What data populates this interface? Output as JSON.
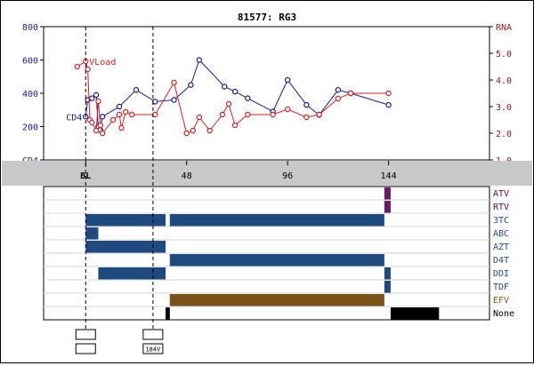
{
  "chart_data": [
    {
      "type": "line",
      "title": "81577: RG3",
      "x_axis": {
        "ticks": [
          0,
          48,
          96,
          144
        ],
        "tick_labels": [
          "BL",
          "48",
          "96",
          "144"
        ],
        "range": [
          -20,
          192
        ]
      },
      "left_axis": {
        "label": "CD4",
        "range": [
          0,
          800
        ],
        "ticks": [
          0,
          200,
          400,
          600,
          800
        ],
        "tick_labels": [
          "CD4",
          "200",
          "400",
          "600",
          "800"
        ],
        "color": "#1a1a8c"
      },
      "right_axis": {
        "label": "RNA",
        "range": [
          1.0,
          6.0
        ],
        "ticks": [
          1.0,
          2.0,
          3.0,
          4.0,
          5.0,
          6.0
        ],
        "tick_labels": [
          "1.0",
          "2.0",
          "3.0",
          "4.0",
          "5.0",
          "RNA"
        ],
        "color": "#8b1a1a"
      },
      "series": [
        {
          "name": "CD4",
          "color": "#1a1a8c",
          "axis": "left",
          "x": [
            0,
            1,
            3,
            5,
            6,
            7,
            8,
            16,
            24,
            33,
            42,
            50,
            54,
            66,
            71,
            77,
            89,
            96,
            105,
            111,
            120,
            126,
            144
          ],
          "y": [
            260,
            360,
            370,
            390,
            200,
            180,
            260,
            320,
            420,
            350,
            360,
            450,
            600,
            440,
            410,
            370,
            290,
            480,
            330,
            270,
            420,
            400,
            330
          ]
        },
        {
          "name": "VLoad",
          "color": "#cc2222",
          "axis": "right",
          "x": [
            -4,
            0,
            1,
            2,
            3,
            5,
            6,
            7,
            8,
            13,
            16,
            17,
            19,
            22,
            33,
            42,
            48,
            51,
            54,
            59,
            65,
            68,
            71,
            77,
            89,
            96,
            105,
            111,
            120,
            126,
            144
          ],
          "y": [
            4.5,
            4.7,
            4.4,
            2.5,
            2.4,
            2.1,
            3.2,
            2.3,
            2.0,
            2.5,
            2.7,
            2.2,
            2.8,
            2.7,
            2.7,
            3.9,
            2.0,
            2.1,
            2.6,
            2.1,
            2.7,
            3.1,
            2.3,
            2.7,
            2.7,
            2.9,
            2.6,
            2.7,
            3.3,
            3.5,
            3.5
          ]
        }
      ],
      "markers": [
        {
          "x": 0,
          "style": "dashed"
        },
        {
          "x": 32,
          "style": "dashed"
        }
      ]
    },
    {
      "type": "timeline",
      "rows": [
        {
          "label": "ATV",
          "label_color": "#5a0a5a",
          "bars": [
            {
              "start": 142,
              "end": 145,
              "color": "#6a1a6a"
            }
          ]
        },
        {
          "label": "RTV",
          "label_color": "#5a0a5a",
          "bars": [
            {
              "start": 142,
              "end": 145,
              "color": "#6a1a6a"
            }
          ]
        },
        {
          "label": "3TC",
          "label_color": "#1f4a80",
          "bars": [
            {
              "start": 0,
              "end": 38,
              "color": "#1f4a80"
            },
            {
              "start": 40,
              "end": 142,
              "color": "#1f4a80"
            }
          ]
        },
        {
          "label": "ABC",
          "label_color": "#1f4a80",
          "bars": [
            {
              "start": 0,
              "end": 6,
              "color": "#1f4a80"
            }
          ]
        },
        {
          "label": "AZT",
          "label_color": "#1f4a80",
          "bars": [
            {
              "start": 0,
              "end": 38,
              "color": "#1f4a80"
            }
          ]
        },
        {
          "label": "D4T",
          "label_color": "#1f4a80",
          "bars": [
            {
              "start": 40,
              "end": 142,
              "color": "#1f4a80"
            }
          ]
        },
        {
          "label": "DDI",
          "label_color": "#1f4a80",
          "bars": [
            {
              "start": 6,
              "end": 38,
              "color": "#1f4a80"
            },
            {
              "start": 142,
              "end": 145,
              "color": "#1f4a80"
            }
          ]
        },
        {
          "label": "TDF",
          "label_color": "#1f4a80",
          "bars": [
            {
              "start": 142,
              "end": 145,
              "color": "#1f4a80"
            }
          ]
        },
        {
          "label": "EFV",
          "label_color": "#8b5a10",
          "bars": [
            {
              "start": 40,
              "end": 142,
              "color": "#7a5218"
            }
          ]
        },
        {
          "label": "None",
          "label_color": "#000000",
          "bars": [
            {
              "start": 38,
              "end": 40,
              "color": "#000000"
            },
            {
              "start": 145,
              "end": 168,
              "color": "#000000"
            }
          ]
        }
      ]
    },
    {
      "type": "annotations",
      "boxes": [
        {
          "x": 0,
          "top": "",
          "bottom": ""
        },
        {
          "x": 32,
          "top": "",
          "bottom": "184V"
        }
      ]
    }
  ]
}
